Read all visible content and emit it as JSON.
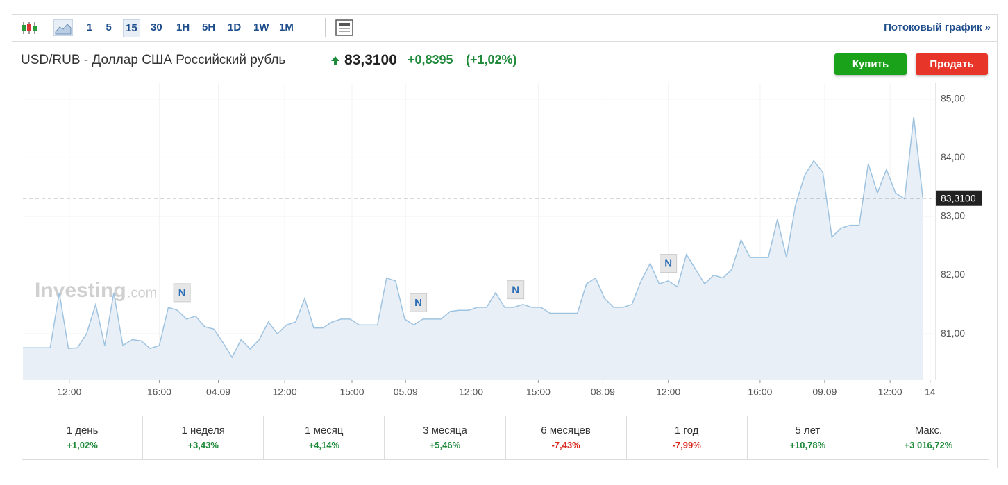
{
  "toolbar": {
    "intervals": [
      "1",
      "5",
      "15",
      "30",
      "1H",
      "5H",
      "1D",
      "1W",
      "1M"
    ],
    "active": "15",
    "stream_link": "Потоковый график »"
  },
  "header": {
    "title": "USD/RUB - Доллар США Российский рубль",
    "price": "83,3100",
    "change": "+0,8395",
    "change_pct": "(+1,02%)",
    "buy": "Купить",
    "sell": "Продать"
  },
  "watermark": {
    "brand": "Investing",
    "suffix": ".com"
  },
  "chart_data": {
    "type": "area",
    "color": "#9ec3e0",
    "fill": "#e8eff7",
    "values": [
      80.76,
      80.76,
      80.76,
      80.76,
      81.7,
      80.75,
      80.76,
      81.0,
      81.5,
      80.8,
      81.7,
      80.8,
      80.9,
      80.88,
      80.75,
      80.8,
      81.45,
      81.4,
      81.25,
      81.3,
      81.12,
      81.08,
      80.85,
      80.6,
      80.9,
      80.74,
      80.9,
      81.2,
      81.0,
      81.15,
      81.2,
      81.6,
      81.1,
      81.1,
      81.2,
      81.25,
      81.25,
      81.15,
      81.15,
      81.15,
      81.95,
      81.9,
      81.25,
      81.15,
      81.25,
      81.25,
      81.25,
      81.38,
      81.4,
      81.4,
      81.45,
      81.45,
      81.7,
      81.45,
      81.45,
      81.5,
      81.45,
      81.45,
      81.35,
      81.35,
      81.35,
      81.35,
      81.85,
      81.95,
      81.6,
      81.45,
      81.45,
      81.5,
      81.9,
      82.2,
      81.85,
      81.9,
      81.8,
      82.35,
      82.1,
      81.85,
      82.0,
      81.95,
      82.1,
      82.6,
      82.3,
      82.3,
      82.3,
      82.95,
      82.3,
      83.2,
      83.7,
      83.95,
      83.75,
      82.65,
      82.8,
      82.85,
      82.85,
      83.9,
      83.4,
      83.8,
      83.4,
      83.3,
      84.7,
      83.31
    ],
    "xlim": [
      0,
      100.2
    ],
    "xticks": [
      {
        "value": 5.1,
        "label": "12:00"
      },
      {
        "value": 15.0,
        "label": "16:00"
      },
      {
        "value": 21.5,
        "label": "04.09"
      },
      {
        "value": 28.8,
        "label": "12:00"
      },
      {
        "value": 36.2,
        "label": "15:00"
      },
      {
        "value": 42.1,
        "label": "05.09"
      },
      {
        "value": 49.3,
        "label": "12:00"
      },
      {
        "value": 56.7,
        "label": "15:00"
      },
      {
        "value": 63.8,
        "label": "08.09"
      },
      {
        "value": 71.0,
        "label": "12:00"
      },
      {
        "value": 81.1,
        "label": "16:00"
      },
      {
        "value": 88.2,
        "label": "09.09"
      },
      {
        "value": 95.4,
        "label": "12:00"
      },
      {
        "value": 99.8,
        "label": "14"
      }
    ],
    "ylim": [
      80.22,
      85.27
    ],
    "yticks": [
      {
        "value": 81,
        "label": "81,00"
      },
      {
        "value": 82,
        "label": "82,00"
      },
      {
        "value": 83,
        "label": "83,00"
      },
      {
        "value": 84,
        "label": "84,00"
      },
      {
        "value": 85,
        "label": "85,00"
      }
    ],
    "grid": true,
    "price_line": {
      "value": 83.31,
      "label": "83,3100"
    },
    "annotations": [
      {
        "label": "N",
        "x": 17.5,
        "y": 81.7
      },
      {
        "label": "N",
        "x": 43.5,
        "y": 81.53
      },
      {
        "label": "N",
        "x": 54.2,
        "y": 81.75
      },
      {
        "label": "N",
        "x": 71.0,
        "y": 82.2
      }
    ]
  },
  "performance": [
    {
      "period": "1 день",
      "change": "+1,02%"
    },
    {
      "period": "1 неделя",
      "change": "+3,43%"
    },
    {
      "period": "1 месяц",
      "change": "+4,14%"
    },
    {
      "period": "3 месяца",
      "change": "+5,46%"
    },
    {
      "period": "6 месяцев",
      "change": "-7,43%"
    },
    {
      "period": "1 год",
      "change": "-7,99%"
    },
    {
      "period": "5 лет",
      "change": "+10,78%"
    },
    {
      "period": "Макс.",
      "change": "+3 016,72%"
    }
  ]
}
